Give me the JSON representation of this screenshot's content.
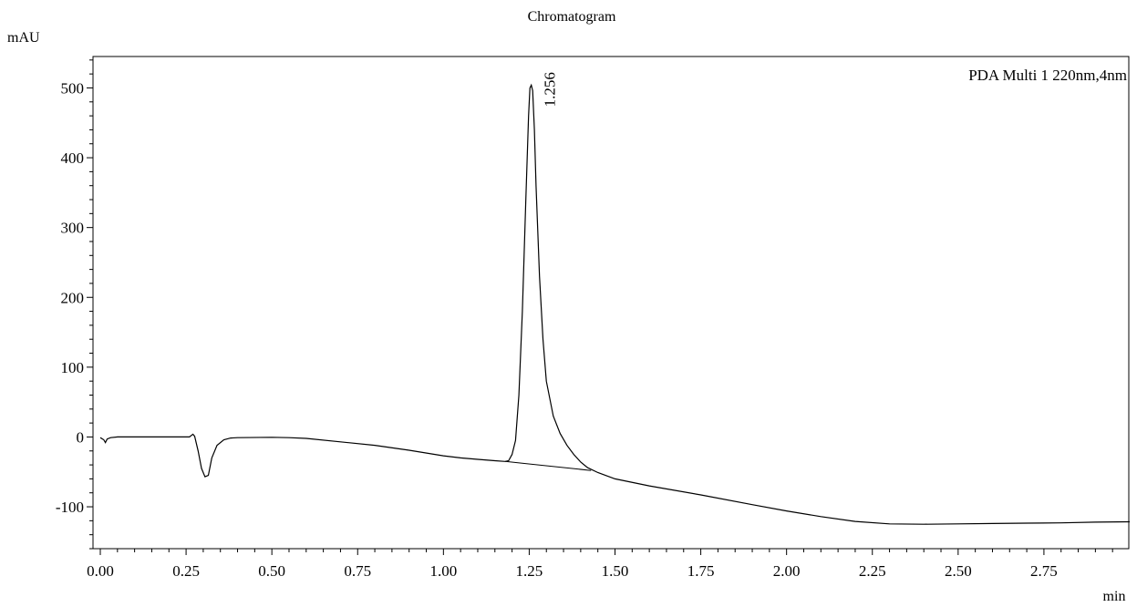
{
  "chart_data": {
    "type": "line",
    "title": "Chromatogram",
    "ylabel": "mAU",
    "xlabel": "min",
    "legend": "PDA Multi 1 220nm,4nm",
    "legend_position": "top-right",
    "xlim": [
      0.0,
      3.0
    ],
    "ylim": [
      -160,
      545
    ],
    "x_ticks": [
      0.0,
      0.25,
      0.5,
      0.75,
      1.0,
      1.25,
      1.5,
      1.75,
      2.0,
      2.25,
      2.5,
      2.75
    ],
    "x_tick_labels": [
      "0.00",
      "0.25",
      "0.50",
      "0.75",
      "1.00",
      "1.25",
      "1.50",
      "1.75",
      "2.00",
      "2.25",
      "2.50",
      "2.75"
    ],
    "y_ticks": [
      -100,
      0,
      100,
      200,
      300,
      400,
      500
    ],
    "y_tick_labels": [
      "-100",
      "0",
      "100",
      "200",
      "300",
      "400",
      "500"
    ],
    "grid": false,
    "series": [
      {
        "points": [
          [
            0.0,
            -1
          ],
          [
            0.01,
            -4
          ],
          [
            0.015,
            -8
          ],
          [
            0.02,
            -3
          ],
          [
            0.03,
            -1
          ],
          [
            0.05,
            0
          ],
          [
            0.1,
            0
          ],
          [
            0.2,
            0
          ],
          [
            0.26,
            0
          ],
          [
            0.27,
            4
          ],
          [
            0.275,
            1
          ],
          [
            0.285,
            -20
          ],
          [
            0.295,
            -45
          ],
          [
            0.305,
            -57
          ],
          [
            0.315,
            -55
          ],
          [
            0.325,
            -30
          ],
          [
            0.34,
            -12
          ],
          [
            0.36,
            -4
          ],
          [
            0.38,
            -1.5
          ],
          [
            0.4,
            -1
          ],
          [
            0.5,
            -0.5
          ],
          [
            0.55,
            -1
          ],
          [
            0.6,
            -2
          ],
          [
            0.7,
            -7
          ],
          [
            0.8,
            -12
          ],
          [
            0.9,
            -19
          ],
          [
            1.0,
            -27
          ],
          [
            1.05,
            -30
          ],
          [
            1.1,
            -32
          ],
          [
            1.15,
            -34
          ],
          [
            1.18,
            -35
          ],
          [
            1.19,
            -34
          ],
          [
            1.2,
            -25
          ],
          [
            1.21,
            -5
          ],
          [
            1.22,
            60
          ],
          [
            1.23,
            180
          ],
          [
            1.24,
            340
          ],
          [
            1.248,
            460
          ],
          [
            1.252,
            500
          ],
          [
            1.256,
            504
          ],
          [
            1.26,
            496
          ],
          [
            1.265,
            440
          ],
          [
            1.27,
            360
          ],
          [
            1.28,
            230
          ],
          [
            1.29,
            140
          ],
          [
            1.3,
            80
          ],
          [
            1.32,
            30
          ],
          [
            1.34,
            5
          ],
          [
            1.36,
            -12
          ],
          [
            1.38,
            -25
          ],
          [
            1.4,
            -36
          ],
          [
            1.42,
            -44
          ],
          [
            1.45,
            -51
          ],
          [
            1.5,
            -60
          ],
          [
            1.6,
            -70
          ],
          [
            1.75,
            -83
          ],
          [
            1.9,
            -97
          ],
          [
            2.0,
            -106
          ],
          [
            2.1,
            -114
          ],
          [
            2.2,
            -121
          ],
          [
            2.3,
            -124.5
          ],
          [
            2.4,
            -125
          ],
          [
            2.5,
            -124.5
          ],
          [
            2.6,
            -124
          ],
          [
            2.7,
            -123.5
          ],
          [
            2.8,
            -123
          ],
          [
            2.9,
            -122
          ],
          [
            3.0,
            -121.5
          ]
        ]
      }
    ],
    "baseline": [
      [
        1.18,
        -35
      ],
      [
        1.43,
        -48
      ]
    ],
    "peak_annotations": [
      {
        "x": 1.256,
        "y": 504,
        "label": "1.256"
      }
    ]
  }
}
